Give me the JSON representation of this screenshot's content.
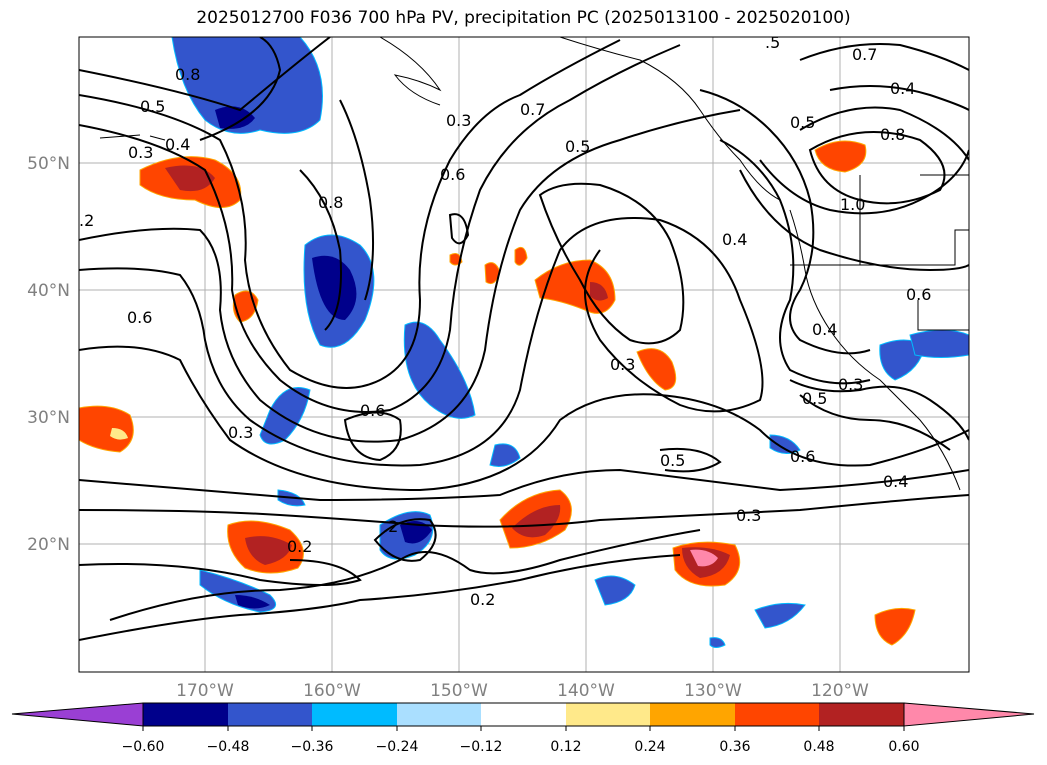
{
  "title": "2025012700 F036 700 hPa PV, precipitation PC (2025013100 - 2025020100)",
  "map": {
    "lat_ticks": [
      "50°N",
      "40°N",
      "30°N",
      "20°N"
    ],
    "lon_ticks": [
      "170°W",
      "160°W",
      "150°W",
      "140°W",
      "130°W",
      "120°W"
    ],
    "contour_labels": [
      "0.8",
      "0.5",
      "0.4",
      "0.3",
      ".2",
      "0.6",
      "0.8",
      "0.3",
      "0.7",
      "0.5",
      "0.6",
      "0.8",
      "0.5",
      "1.0",
      "0.4",
      "0.6",
      "0.4",
      "0.3",
      "0.3",
      "0.6",
      "0.5",
      "0.3",
      "0.6",
      "0.5",
      "0.4",
      "0.3",
      "0.2",
      "0.2",
      ".2",
      "0.7",
      "0.4",
      ".5"
    ]
  },
  "colorbar": {
    "ticks": [
      "−0.60",
      "−0.48",
      "−0.36",
      "−0.24",
      "−0.12",
      "0.12",
      "0.24",
      "0.36",
      "0.48",
      "0.60"
    ],
    "colors": [
      "#9a3fd4",
      "#00008b",
      "#3355cc",
      "#00bbff",
      "#aadfff",
      "#ffffff",
      "#ffe98a",
      "#ffa500",
      "#ff4500",
      "#b22222",
      "#ff88aa"
    ]
  }
}
